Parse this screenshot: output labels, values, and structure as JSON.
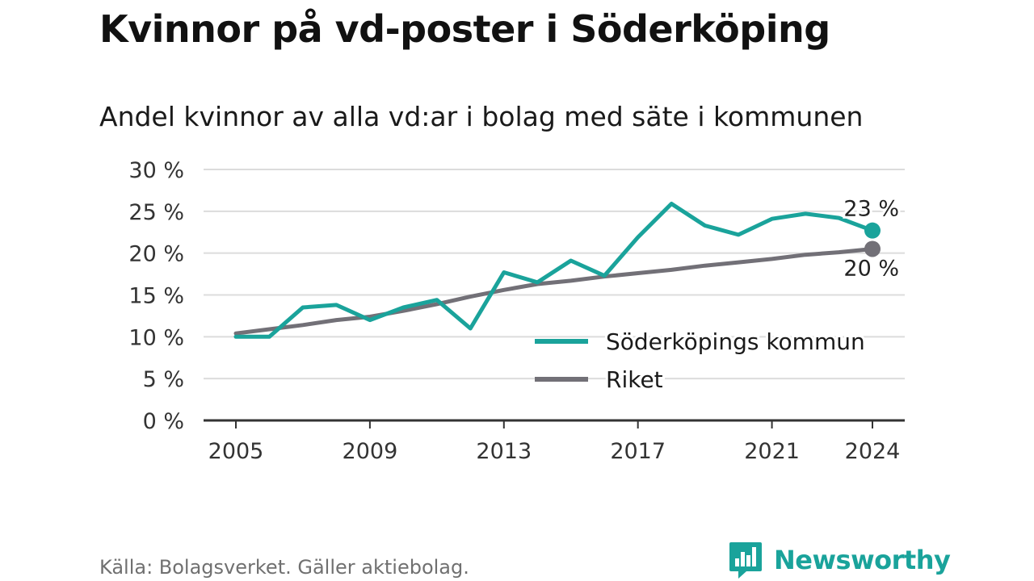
{
  "title": "Kvinnor på vd-poster i Söderköping",
  "subtitle": "Andel kvinnor av alla vd:ar i bolag med säte i kommunen",
  "source": "Källa: Bolagsverket. Gäller aktiebolag.",
  "brand": "Newsworthy",
  "colors": {
    "series_kommun": "#1aa39b",
    "series_riket": "#727077",
    "grid": "#dcdcdc",
    "axis": "#333333",
    "brand": "#1aa39b"
  },
  "icons": {
    "logo": "bar-chart-speech-bubble-icon"
  },
  "chart_data": {
    "type": "line",
    "title": "Kvinnor på vd-poster i Söderköping",
    "subtitle": "Andel kvinnor av alla vd:ar i bolag med säte i kommunen",
    "xlabel": "",
    "ylabel": "",
    "x": [
      2005,
      2006,
      2007,
      2008,
      2009,
      2010,
      2011,
      2012,
      2013,
      2014,
      2015,
      2016,
      2017,
      2018,
      2019,
      2020,
      2021,
      2022,
      2023,
      2024
    ],
    "x_ticks": [
      "2005",
      "2009",
      "2013",
      "2017",
      "2021",
      "2024"
    ],
    "y_ticks": [
      "0 %",
      "5 %",
      "10 %",
      "15 %",
      "20 %",
      "25 %",
      "30 %"
    ],
    "ylim": [
      0,
      30
    ],
    "xlim": [
      2005,
      2024
    ],
    "grid": "horizontal",
    "legend_position": "bottom-right",
    "series": [
      {
        "name": "Söderköpings kommun",
        "color": "#1aa39b",
        "values": [
          10.0,
          10.0,
          13.5,
          13.8,
          12.0,
          13.5,
          14.4,
          11.0,
          17.7,
          16.5,
          19.1,
          17.3,
          21.9,
          25.9,
          23.3,
          22.2,
          24.1,
          24.7,
          24.2,
          22.7
        ],
        "end_label": "23 %"
      },
      {
        "name": "Riket",
        "color": "#727077",
        "values": [
          10.4,
          10.9,
          11.4,
          12.0,
          12.4,
          13.1,
          13.9,
          14.8,
          15.6,
          16.3,
          16.7,
          17.2,
          17.6,
          18.0,
          18.5,
          18.9,
          19.3,
          19.8,
          20.1,
          20.5
        ],
        "end_label": "20 %"
      }
    ]
  }
}
